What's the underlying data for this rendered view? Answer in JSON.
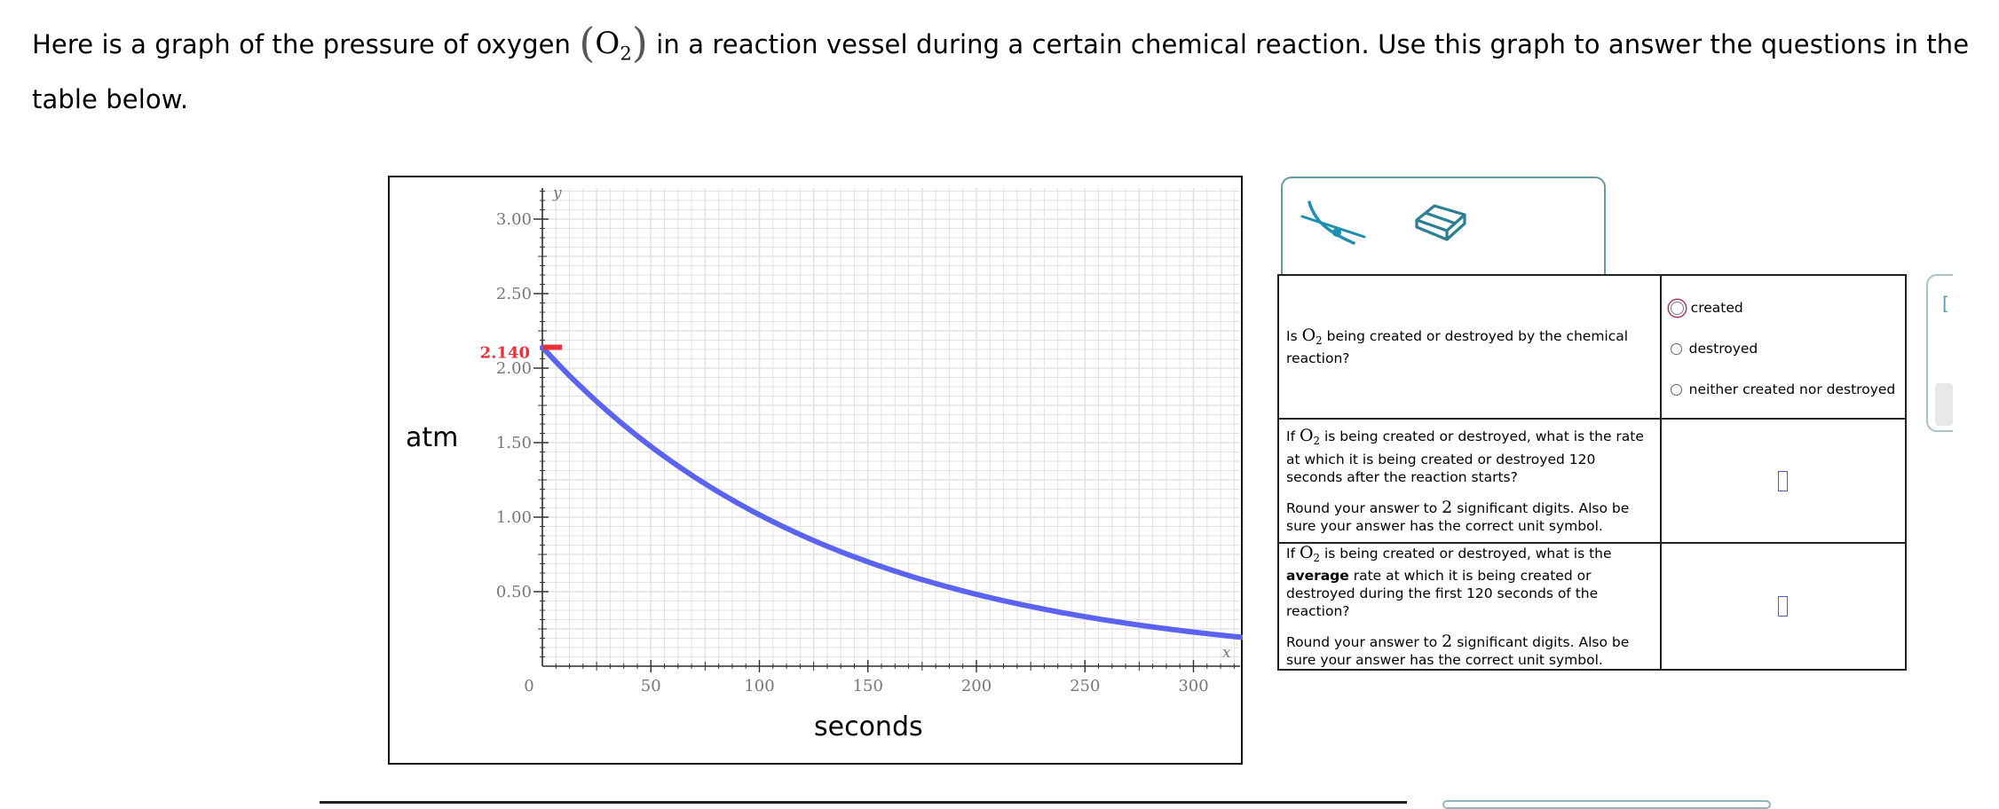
{
  "intro": {
    "part1": "Here is a graph of the pressure of oxygen",
    "species": "O",
    "species_sub": "2",
    "part2": "in a reaction vessel during a certain chemical reaction. Use this graph to answer the questions in the table below."
  },
  "graph": {
    "y_unit_label": "atm",
    "x_unit_label": "seconds",
    "y_axis_letter": "y",
    "x_axis_letter": "x",
    "origin_label": "0",
    "highlight_label": "2.140",
    "curve_color": "#5b63f0",
    "highlight_color": "#e8323a"
  },
  "chart_data": {
    "type": "line",
    "xlabel": "seconds",
    "ylabel": "atm",
    "xlim": [
      0,
      325
    ],
    "ylim": [
      0,
      3.2
    ],
    "x_ticks": [
      50,
      100,
      150,
      200,
      250,
      300
    ],
    "x_tick_labels": [
      "50",
      "100",
      "150",
      "200",
      "250",
      "300"
    ],
    "y_ticks": [
      0.5,
      1.0,
      1.5,
      2.0,
      2.5,
      3.0
    ],
    "y_tick_labels": [
      "0.50",
      "1.00",
      "1.50",
      "2.00",
      "2.50",
      "3.00"
    ],
    "grid": true,
    "highlighted_value": {
      "y": 2.14,
      "label": "2.140"
    },
    "series": [
      {
        "x": [
          0,
          10,
          25,
          50,
          75,
          100,
          125,
          150,
          175,
          200,
          225,
          250,
          275,
          300,
          325
        ],
        "y": [
          2.14,
          1.98,
          1.77,
          1.47,
          1.23,
          1.02,
          0.85,
          0.71,
          0.59,
          0.49,
          0.41,
          0.34,
          0.28,
          0.23,
          0.19
        ]
      }
    ]
  },
  "tools": {
    "curve_tool_icon": "tangent-curve-icon",
    "eraser_tool_icon": "eraser-icon"
  },
  "table": {
    "q1": {
      "pre": "Is",
      "species": "O",
      "sub": "2",
      "post": "being created or destroyed by the chemical reaction?",
      "options": [
        "created",
        "destroyed",
        "neither created nor destroyed"
      ]
    },
    "q2": {
      "pre": "If",
      "species": "O",
      "sub": "2",
      "post": "is being created or destroyed, what is the rate at which it is being created or destroyed 120 seconds after the reaction starts?",
      "round_pre": "Round your answer to",
      "round_num": "2",
      "round_post": "significant digits. Also be sure your answer has the correct unit symbol."
    },
    "q3": {
      "pre": "If",
      "species": "O",
      "sub": "2",
      "post_a": "is being created or destroyed, what is the",
      "bold": "average",
      "post_b": "rate at which it is being created or destroyed during the first 120 seconds of the reaction?",
      "round_pre": "Round your answer to",
      "round_num": "2",
      "round_post": "significant digits. Also be sure your answer has the correct unit symbol."
    }
  },
  "side": {
    "bracket": "["
  }
}
